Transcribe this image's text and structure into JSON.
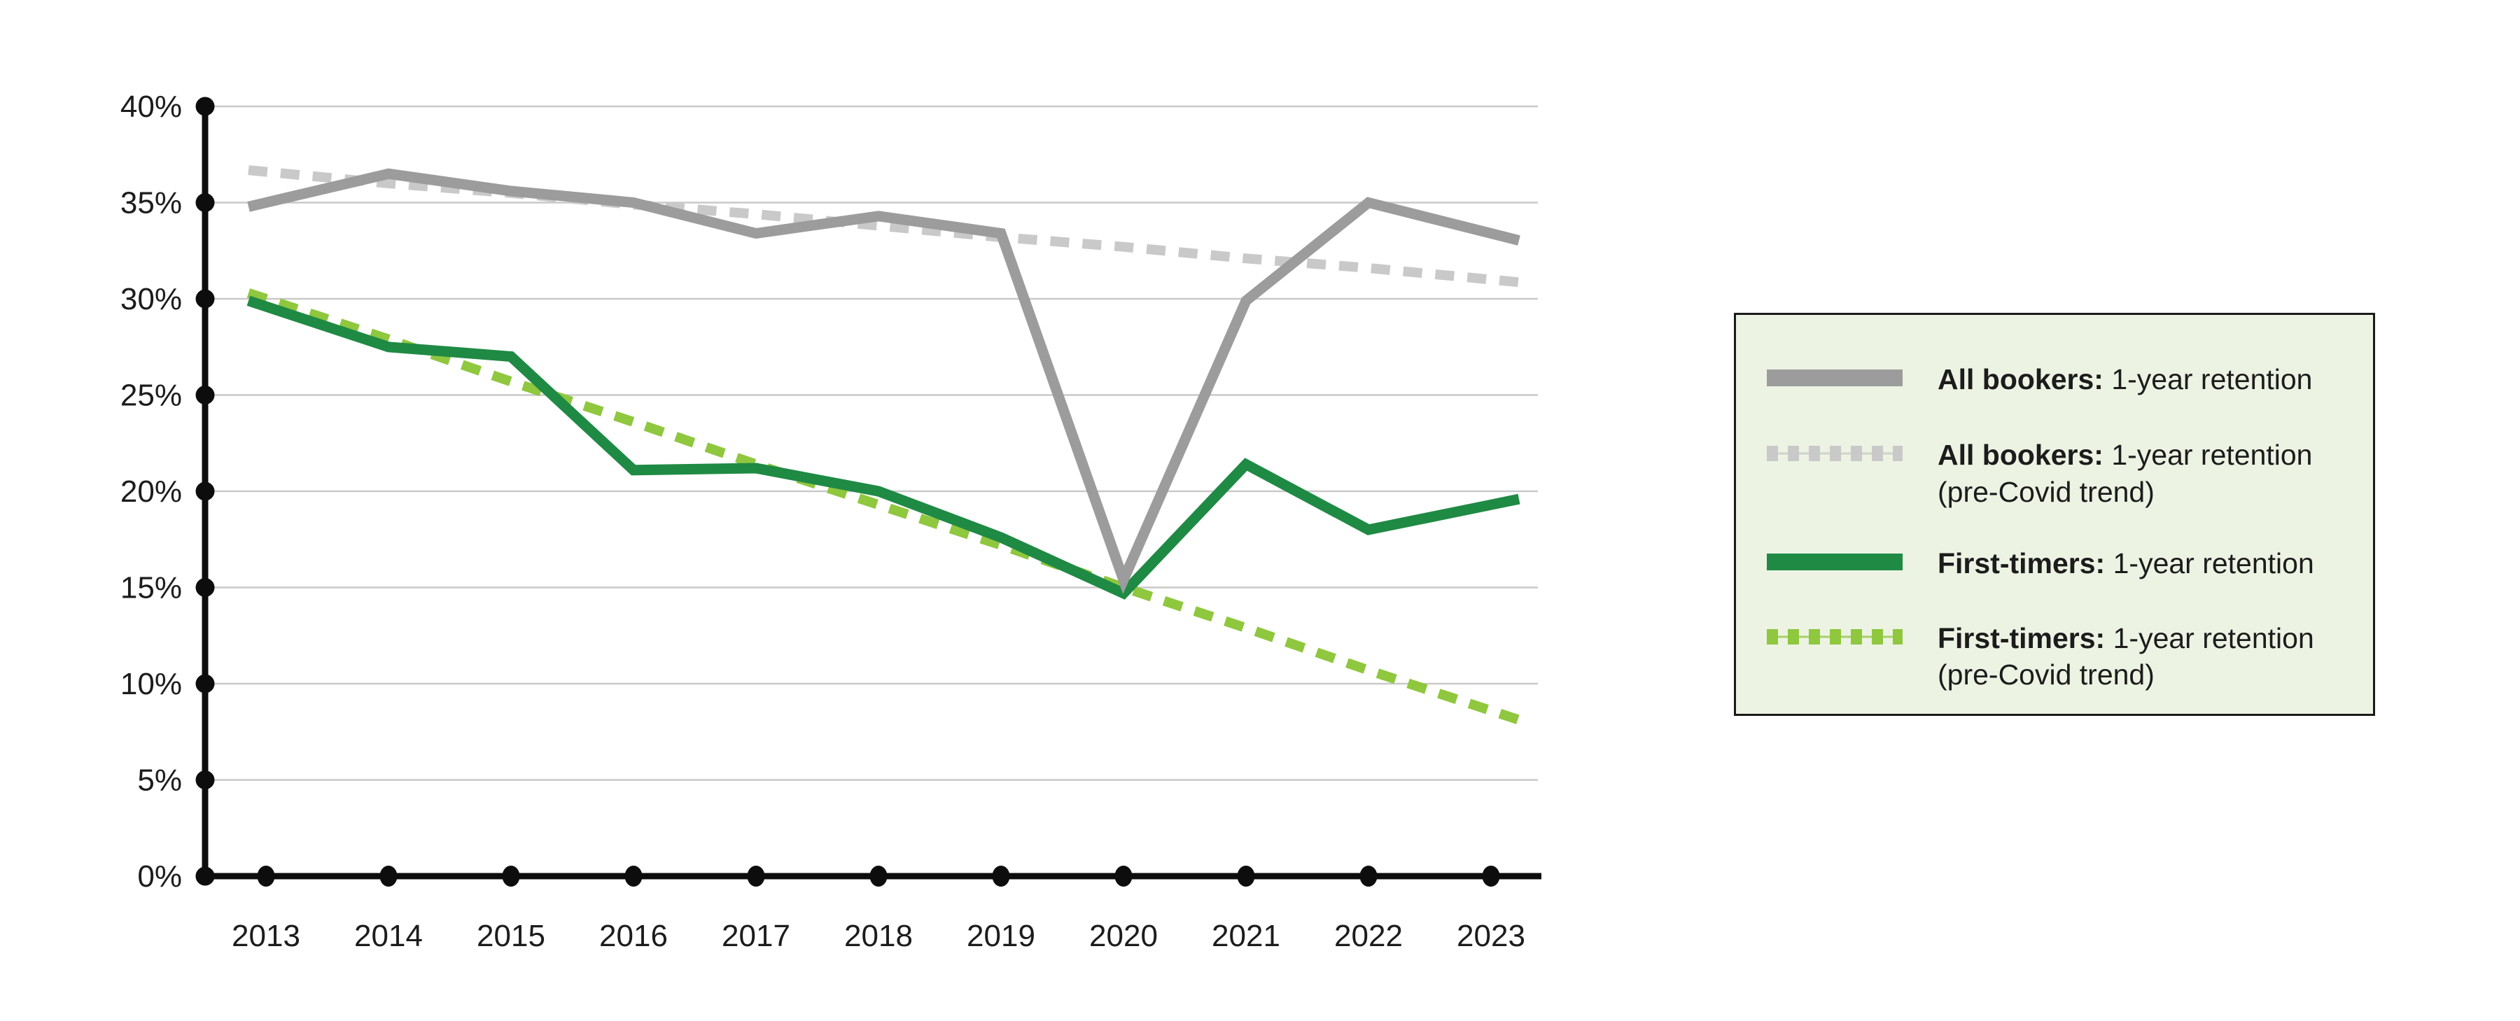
{
  "colors": {
    "gray_solid": "#9c9c9c",
    "gray_dashed": "#c9c9c9",
    "green_solid": "#1f8a44",
    "green_dashed": "#8fc73e",
    "axis": "#0d0d0d",
    "gridline": "#c9c9c9",
    "legend_bg": "#ecf3e3",
    "text": "#1c1c1c"
  },
  "chart_data": {
    "type": "line",
    "x": [
      2013,
      2014,
      2015,
      2016,
      2017,
      2018,
      2019,
      2020,
      2021,
      2022,
      2023
    ],
    "x_tick_labels": [
      "2013",
      "2014",
      "2015",
      "2016",
      "2017",
      "2018",
      "2019",
      "2020",
      "2021",
      "2022",
      "2023"
    ],
    "y_tick_labels": [
      "40%",
      "35%",
      "30%",
      "25%",
      "20%",
      "15%",
      "10%",
      "5%",
      "0%"
    ],
    "y_tick_values": [
      40,
      35,
      30,
      25,
      20,
      15,
      10,
      5,
      0
    ],
    "ylim": [
      0,
      40
    ],
    "grid": true,
    "legend_position": "right",
    "series": [
      {
        "id": "all-bookers-line",
        "name": "All bookers: 1-year retention",
        "style": "solid",
        "color": "#9c9c9c",
        "values": [
          35.0,
          36.5,
          35.6,
          35.0,
          33.4,
          34.3,
          33.4,
          15.4,
          29.9,
          35.0,
          33.4
        ]
      },
      {
        "id": "all-bookers-trend-line",
        "name": "All bookers: 1-year retention (pre-Covid trend)",
        "style": "dashed",
        "color": "#c9c9c9",
        "values": [
          36.6,
          36.0,
          35.5,
          34.9,
          34.4,
          33.8,
          33.2,
          32.7,
          32.1,
          31.6,
          31.0
        ]
      },
      {
        "id": "first-timers-line",
        "name": "First-timers: 1-year retention",
        "style": "solid",
        "color": "#1f8a44",
        "values": [
          29.6,
          27.5,
          27.0,
          21.1,
          21.2,
          20.0,
          17.6,
          14.7,
          21.4,
          18.0,
          19.3
        ]
      },
      {
        "id": "first-timers-trend-line",
        "name": "First-timers: 1-year retention (pre-Covid trend)",
        "style": "dashed",
        "color": "#8fc73e",
        "values": [
          30.0,
          27.9,
          25.7,
          23.6,
          21.4,
          19.3,
          17.2,
          15.0,
          12.9,
          10.7,
          8.6
        ]
      }
    ]
  },
  "legend": {
    "items": [
      {
        "label_bold": "All bookers:",
        "label_rest": " 1-year retention",
        "label_line2": "",
        "swatch": "gray-solid"
      },
      {
        "label_bold": "All bookers:",
        "label_rest": " 1-year retention",
        "label_line2": "(pre-Covid trend)",
        "swatch": "gray-dashed"
      },
      {
        "label_bold": "First-timers:",
        "label_rest": " 1-year retention",
        "label_line2": "",
        "swatch": "green-solid"
      },
      {
        "label_bold": "First-timers:",
        "label_rest": " 1-year retention",
        "label_line2": "(pre-Covid trend)",
        "swatch": "green-dashed"
      }
    ]
  }
}
